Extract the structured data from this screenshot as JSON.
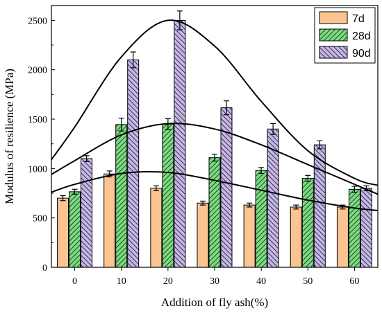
{
  "chart_data": {
    "type": "bar",
    "title": "",
    "xlabel": "Addition of fly ash(%)",
    "ylabel": "Modulus of resilience (MPa)",
    "categories": [
      "0",
      "10",
      "20",
      "30",
      "40",
      "50",
      "60"
    ],
    "ylim": [
      0,
      2650
    ],
    "yticks": [
      0,
      500,
      1000,
      1500,
      2000,
      2500
    ],
    "legend_position": "top-right",
    "series": [
      {
        "name": "7d",
        "color": "#fbc490",
        "pattern": "solid",
        "values": [
          700,
          945,
          800,
          650,
          630,
          610,
          610
        ],
        "errors": [
          25,
          30,
          25,
          20,
          20,
          20,
          20
        ]
      },
      {
        "name": "28d",
        "color": "#7ddb83",
        "pattern": "forward-hatch",
        "values": [
          765,
          1445,
          1450,
          1110,
          980,
          900,
          790
        ],
        "errors": [
          25,
          65,
          55,
          35,
          30,
          30,
          30
        ]
      },
      {
        "name": "90d",
        "color": "#c5b8e3",
        "pattern": "backward-hatch",
        "values": [
          1100,
          2100,
          2500,
          1615,
          1400,
          1240,
          800
        ],
        "errors": [
          30,
          80,
          95,
          70,
          55,
          40,
          25
        ]
      }
    ],
    "fit_curves": [
      {
        "series": "7d",
        "x": [
          -0.5,
          0,
          1,
          2,
          3,
          4,
          5,
          6,
          6.5
        ],
        "y": [
          760,
          840,
          950,
          960,
          880,
          780,
          680,
          600,
          575
        ]
      },
      {
        "series": "28d",
        "x": [
          -0.5,
          0,
          1,
          2,
          3,
          4,
          5,
          6,
          6.5
        ],
        "y": [
          940,
          1080,
          1340,
          1455,
          1400,
          1240,
          1040,
          840,
          740
        ]
      },
      {
        "series": "90d",
        "x": [
          -0.5,
          0,
          1,
          2,
          3,
          4,
          5,
          6,
          6.5
        ],
        "y": [
          1090,
          1420,
          2130,
          2500,
          2240,
          1680,
          1180,
          900,
          830
        ]
      }
    ]
  }
}
